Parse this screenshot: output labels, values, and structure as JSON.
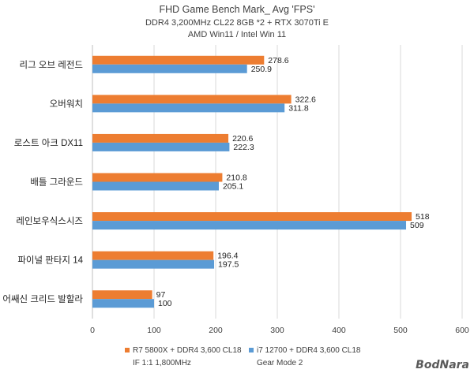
{
  "chart_data": {
    "type": "bar",
    "orientation": "horizontal",
    "title": "FHD Game Bench Mark_ Avg 'FPS'",
    "subtitle_lines": [
      "DDR4 3,200MHz CL22 8GB *2 + RTX 3070Ti E",
      "AMD Win11 / Intel Win 11"
    ],
    "categories": [
      "리그 오브 레전드",
      "오버워치",
      "로스트 아크 DX11",
      "배틀 그라운드",
      "레인보우식스시즈",
      "파이널 판타지 14",
      "어쌔신 크리드 발할라"
    ],
    "series": [
      {
        "name_lines": [
          "R7 5800X + DDR4 3,600 CL18",
          "IF 1:1 1,800MHz"
        ],
        "color": "#ED7D31",
        "values": [
          278.6,
          322.6,
          220.6,
          210.8,
          518,
          196.4,
          97
        ]
      },
      {
        "name_lines": [
          "i7 12700 + DDR4 3,600 CL18",
          "Gear Mode 2"
        ],
        "color": "#5B9BD5",
        "values": [
          250.9,
          311.8,
          222.3,
          205.1,
          509,
          197.5,
          100
        ]
      }
    ],
    "xlim": [
      0,
      600
    ],
    "xticks": [
      0,
      100,
      200,
      300,
      400,
      500,
      600
    ],
    "grid": true,
    "legend_position": "bottom"
  },
  "watermark": "BodNara"
}
